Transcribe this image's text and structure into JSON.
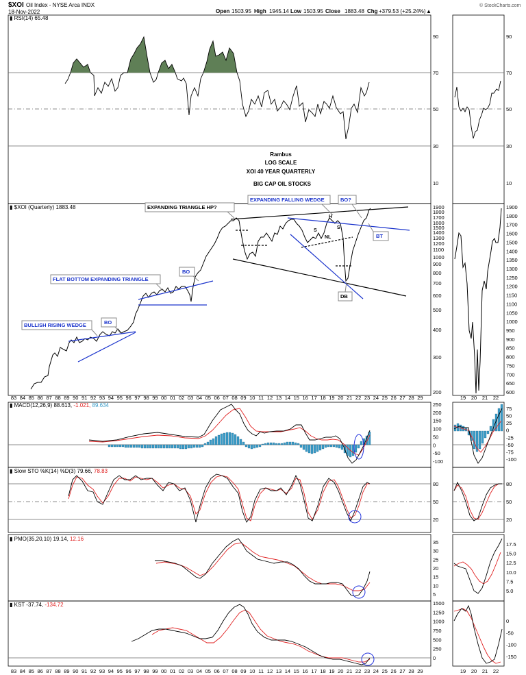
{
  "header": {
    "symbol": "$XOI",
    "name": "Oil Index - NYSE Arca INDX",
    "date": "18-Nov-2022",
    "open_label": "Open",
    "open": "1503.95",
    "high_label": "High",
    "high": "1945.14",
    "low_label": "Low",
    "low": "1503.95",
    "close_label": "Close",
    "close": "1883.48",
    "chg_label": "Chg",
    "chg": "+379.53 (+25.24%)",
    "logo": "© StockCharts.com"
  },
  "colors": {
    "price_line": "#000000",
    "rsi_fill": "#5f7f56",
    "annotation_blue": "#1a33cc",
    "signal_red": "#e02020",
    "macd_hist": "#3a9cc8",
    "grid": "#888888",
    "circle_blue": "#2233dd"
  },
  "chart_data": [
    {
      "type": "line",
      "panel": "RSI",
      "label": "RSI(14) 65.48",
      "ylim": [
        0,
        100
      ],
      "yticks": [
        "90",
        "70",
        "50",
        "30",
        "10"
      ],
      "series": [
        {
          "values": [
            [
              1989,
              63
            ],
            [
              1989.5,
              68
            ],
            [
              1990,
              76
            ],
            [
              1990.5,
              78
            ],
            [
              1991,
              71
            ],
            [
              1991.5,
              74
            ],
            [
              1992,
              72
            ],
            [
              1992.5,
              76
            ],
            [
              1993,
              73
            ],
            [
              1993.5,
              58
            ],
            [
              1994,
              60
            ],
            [
              1994.5,
              65
            ],
            [
              1995,
              62
            ],
            [
              1995.5,
              68
            ],
            [
              1996,
              74
            ],
            [
              1996.5,
              79
            ],
            [
              1997,
              82
            ],
            [
              1997.5,
              89
            ],
            [
              1998,
              73
            ],
            [
              1998.5,
              58
            ],
            [
              1999,
              70
            ],
            [
              1999.5,
              74
            ],
            [
              2000,
              77
            ],
            [
              2000.5,
              73
            ],
            [
              2001,
              74
            ],
            [
              2001.5,
              76
            ],
            [
              2002,
              69
            ],
            [
              2002.5,
              63
            ],
            [
              2003,
              68
            ],
            [
              2003.5,
              54
            ],
            [
              2004,
              66
            ],
            [
              2004.5,
              72
            ],
            [
              2005,
              81
            ],
            [
              2005.5,
              86
            ],
            [
              2006,
              79
            ],
            [
              2006.5,
              88
            ],
            [
              2007,
              80
            ],
            [
              2007.5,
              86
            ],
            [
              2008,
              82
            ],
            [
              2008.5,
              70
            ],
            [
              2009,
              55
            ],
            [
              2009.5,
              48
            ],
            [
              2010,
              58
            ],
            [
              2010.5,
              62
            ],
            [
              2011,
              57
            ],
            [
              2011.5,
              53
            ],
            [
              2012,
              60
            ],
            [
              2012.5,
              56
            ],
            [
              2013,
              62
            ],
            [
              2013.5,
              66
            ],
            [
              2014,
              64
            ],
            [
              2014.5,
              56
            ],
            [
              2015,
              45
            ],
            [
              2015.5,
              53
            ],
            [
              2016,
              50
            ],
            [
              2016.5,
              61
            ],
            [
              2017,
              55
            ],
            [
              2017.5,
              57
            ],
            [
              2018,
              54
            ],
            [
              2018.5,
              60
            ],
            [
              2019,
              52
            ],
            [
              2019.5,
              50
            ],
            [
              2020,
              36
            ],
            [
              2020.5,
              44
            ],
            [
              2021,
              57
            ],
            [
              2021.5,
              60
            ],
            [
              2022,
              65
            ],
            [
              2022.5,
              63
            ],
            [
              2022.9,
              65.5
            ]
          ]
        }
      ],
      "annotations": [
        "Rambus",
        "LOG SCALE",
        "XOI 40 YEAR QUARTERLY",
        "BIG CAP OIL STOCKS"
      ]
    },
    {
      "type": "line",
      "panel": "Price",
      "label": "$XOI (Quarterly) 1883.48",
      "scale": "log",
      "ylim": [
        150,
        1900
      ],
      "yticks": [
        "1900",
        "1800",
        "1700",
        "1600",
        "1500",
        "1400",
        "1300",
        "1200",
        "1100",
        "1000",
        "900",
        "800",
        "700",
        "600",
        "500",
        "400",
        "300",
        "200"
      ],
      "series": [
        {
          "values": [
            [
              1983,
              150
            ],
            [
              1984,
              160
            ],
            [
              1985,
              162
            ],
            [
              1986,
              175
            ],
            [
              1987,
              230
            ],
            [
              1988,
              225
            ],
            [
              1989,
              255
            ],
            [
              1990,
              265
            ],
            [
              1991,
              262
            ],
            [
              1992,
              258
            ],
            [
              1993,
              272
            ],
            [
              1994,
              275
            ],
            [
              1995,
              285
            ],
            [
              1996,
              320
            ],
            [
              1997,
              400
            ],
            [
              1998,
              420
            ],
            [
              1999,
              445
            ],
            [
              2000,
              470
            ],
            [
              2001,
              470
            ],
            [
              2002,
              440
            ],
            [
              2003,
              450
            ],
            [
              2004,
              620
            ],
            [
              2005,
              850
            ],
            [
              2006,
              1100
            ],
            [
              2007,
              1450
            ],
            [
              2008,
              1680
            ],
            [
              2008.5,
              1100
            ],
            [
              2009,
              880
            ],
            [
              2010,
              1050
            ],
            [
              2011,
              1250
            ],
            [
              2012,
              1150
            ],
            [
              2013,
              1250
            ],
            [
              2014,
              1680
            ],
            [
              2015,
              1300
            ],
            [
              2016,
              1150
            ],
            [
              2017,
              1250
            ],
            [
              2018,
              1400
            ],
            [
              2019,
              1300
            ],
            [
              2019.5,
              1300
            ],
            [
              2020,
              650
            ],
            [
              2021,
              1200
            ],
            [
              2022,
              1500
            ],
            [
              2022.9,
              1883
            ]
          ]
        }
      ],
      "annotations": [
        "EXPANDING TRIANGLE HP?",
        "EXPANDING FALLING WEDGE",
        "BO?",
        "BT",
        "S",
        "H",
        "S",
        "NL",
        "DB",
        "BULLISH RISING WEDGE",
        "BO",
        "FLAT BOTTOM EXPANDING TRIANGLE",
        "BO"
      ]
    },
    {
      "type": "bar",
      "panel": "MACD",
      "label": "MACD(12,26,9) 88.613, -1.021, 89.634",
      "yticks": [
        "250",
        "200",
        "150",
        "100",
        "50",
        "0",
        "-50",
        "-100"
      ]
    },
    {
      "type": "line",
      "panel": "Slow STO",
      "label": "Slow STO %K(14) %D(3) 79.66, 78.83",
      "ylim": [
        0,
        100
      ],
      "yticks": [
        "80",
        "50",
        "20"
      ]
    },
    {
      "type": "line",
      "panel": "PMO",
      "label": "PMO(35,20,10) 19.14, 12.16",
      "yticks": [
        "35",
        "30",
        "25",
        "20",
        "15",
        "10",
        "5"
      ]
    },
    {
      "type": "line",
      "panel": "KST",
      "label": "KST -37.74, -134.72",
      "yticks": [
        "1500",
        "1250",
        "1000",
        "750",
        "500",
        "250",
        "0"
      ]
    }
  ],
  "main_labels": {
    "rsi": "RSI(14) 65.48",
    "price": "$XOI (Quarterly) 1883.48",
    "macd_a": "MACD(12,26,9) 88.613,",
    "macd_b": "-1.021,",
    "macd_c": "89.634",
    "sto_a": "Slow STO %K(14) %D(3) 79.66,",
    "sto_b": "78.83",
    "pmo_a": "PMO(35,20,10) 19.14,",
    "pmo_b": "12.16",
    "kst_a": "KST -37.74,",
    "kst_b": "-134.72"
  },
  "rambus": {
    "line1": "Rambus",
    "line2": "LOG SCALE",
    "line3": "XOI 40 YEAR QUARTERLY",
    "line4": "BIG CAP OIL STOCKS"
  },
  "callouts": {
    "expanding_triangle": "EXPANDING TRIANGLE HP?",
    "expanding_falling_wedge": "EXPANDING FALLING WEDGE",
    "bo_q": "BO?",
    "bt": "BT",
    "s1": "S",
    "h": "H",
    "s2": "S",
    "nl": "NL",
    "db": "DB",
    "bullish_rising_wedge": "BULLISH RISING WEDGE",
    "bo1": "BO",
    "flat_bottom": "FLAT BOTTOM EXPANDING TRIANGLE",
    "bo2": "BO"
  },
  "x_axis": {
    "years_main": [
      "83",
      "84",
      "85",
      "86",
      "87",
      "88",
      "89",
      "90",
      "91",
      "92",
      "93",
      "94",
      "95",
      "96",
      "97",
      "98",
      "99",
      "00",
      "01",
      "02",
      "03",
      "04",
      "05",
      "06",
      "07",
      "08",
      "09",
      "10",
      "11",
      "12",
      "13",
      "14",
      "15",
      "16",
      "17",
      "18",
      "19",
      "20",
      "21",
      "22",
      "23",
      "24",
      "25",
      "26",
      "27",
      "28",
      "29"
    ],
    "years_zoom": [
      "19",
      "20",
      "21",
      "22"
    ]
  },
  "right_axis": {
    "rsi": [
      "90",
      "70",
      "50",
      "30",
      "10"
    ],
    "price_main": [
      "1900",
      "1800",
      "1700",
      "1600",
      "1500",
      "1400",
      "1300",
      "1200",
      "1100",
      "1000",
      "900",
      "800",
      "700",
      "600",
      "500",
      "400",
      "300",
      "200"
    ],
    "price_zoom": [
      "1900",
      "1800",
      "1700",
      "1600",
      "1500",
      "1400",
      "1350",
      "1300",
      "1250",
      "1200",
      "1150",
      "1100",
      "1050",
      "1000",
      "950",
      "900",
      "850",
      "800",
      "750",
      "700",
      "650",
      "600"
    ],
    "macd_main": [
      "250",
      "200",
      "150",
      "100",
      "50",
      "0",
      "-50",
      "-100"
    ],
    "macd_zoom": [
      "75",
      "50",
      "25",
      "0",
      "-25",
      "-50",
      "-75",
      "-100"
    ],
    "sto": [
      "80",
      "50",
      "20"
    ],
    "pmo_main": [
      "35",
      "30",
      "25",
      "20",
      "15",
      "10",
      "5"
    ],
    "pmo_zoom": [
      "17.5",
      "15.0",
      "12.5",
      "10.0",
      "7.5",
      "5.0"
    ],
    "kst_main": [
      "1500",
      "1250",
      "1000",
      "750",
      "500",
      "250",
      "0"
    ],
    "kst_zoom": [
      "0",
      "-50",
      "-100",
      "-150"
    ]
  }
}
